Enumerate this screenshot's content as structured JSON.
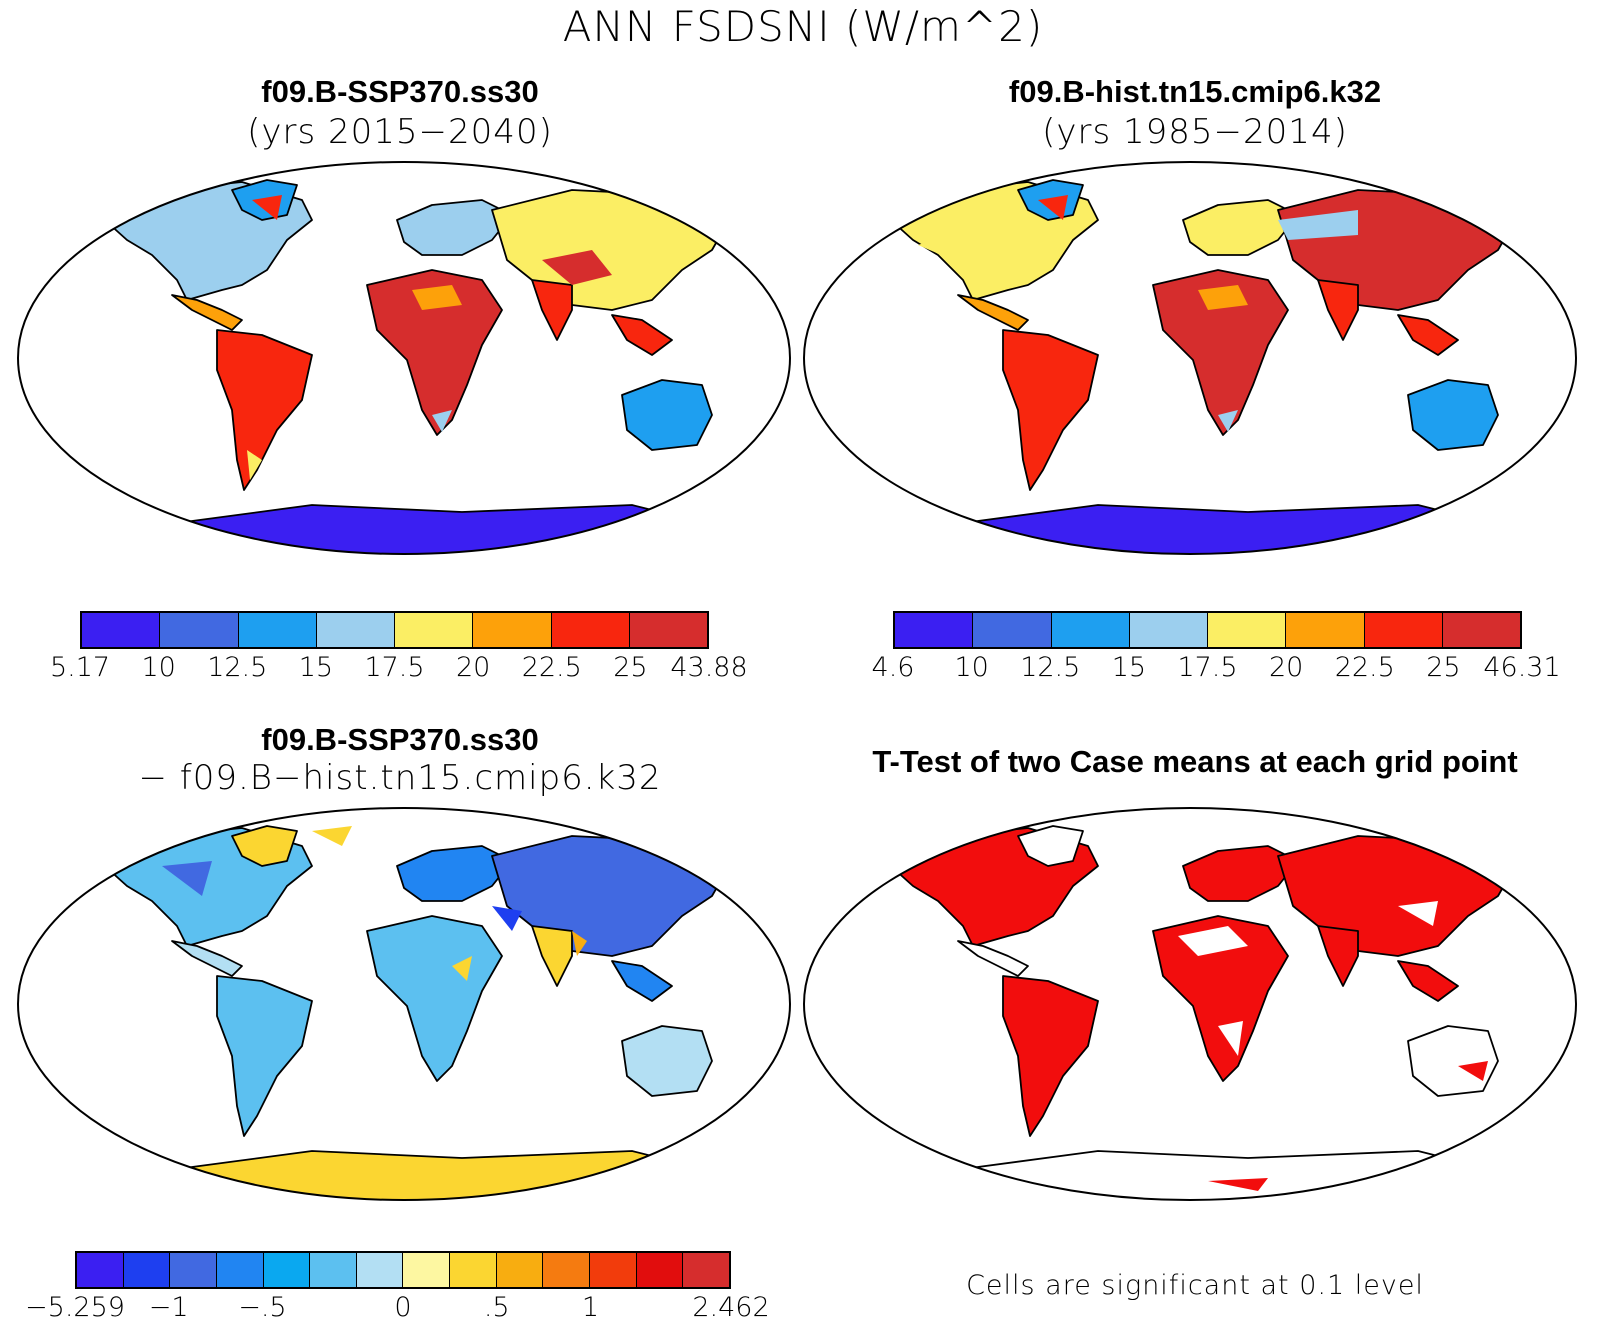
{
  "title": "ANN FSDSNI (W/m^2)",
  "panels": [
    {
      "title": "f09.B-SSP370.ss30",
      "subtitle": "(yrs 2015−2040)",
      "colorbar": {
        "colors": [
          "#3b1ff2",
          "#4169e1",
          "#1e9ff0",
          "#9ccfee",
          "#fbee64",
          "#fda10a",
          "#f8260e",
          "#d62d2d"
        ],
        "labels": [
          "5.17",
          "10",
          "12.5",
          "15",
          "17.5",
          "20",
          "22.5",
          "25",
          "43.88"
        ]
      }
    },
    {
      "title": "f09.B-hist.tn15.cmip6.k32",
      "subtitle": "(yrs 1985−2014)",
      "colorbar": {
        "colors": [
          "#3b1ff2",
          "#4169e1",
          "#1e9ff0",
          "#9ccfee",
          "#fbee64",
          "#fda10a",
          "#f8260e",
          "#d62d2d"
        ],
        "labels": [
          "4.6",
          "10",
          "12.5",
          "15",
          "17.5",
          "20",
          "22.5",
          "25",
          "46.31"
        ]
      }
    },
    {
      "title": "f09.B-SSP370.ss30",
      "subtitle": "− f09.B−hist.tn15.cmip6.k32",
      "colorbar": {
        "colors": [
          "#3b1ff2",
          "#1e3ff0",
          "#4169e1",
          "#2185f2",
          "#0aa8f0",
          "#5cc0f0",
          "#b3dff3",
          "#fdf7a1",
          "#fbd631",
          "#f8ad10",
          "#f57b10",
          "#f23c0c",
          "#e10d0d",
          "#d62d2d"
        ],
        "labels": [
          "−5.259",
          "−1",
          "−.5",
          "0",
          ".5",
          "1",
          "2.462"
        ]
      }
    },
    {
      "title": "T-Test of two Case means at each grid point",
      "note": "Cells are significant at 0.1 level"
    }
  ]
}
